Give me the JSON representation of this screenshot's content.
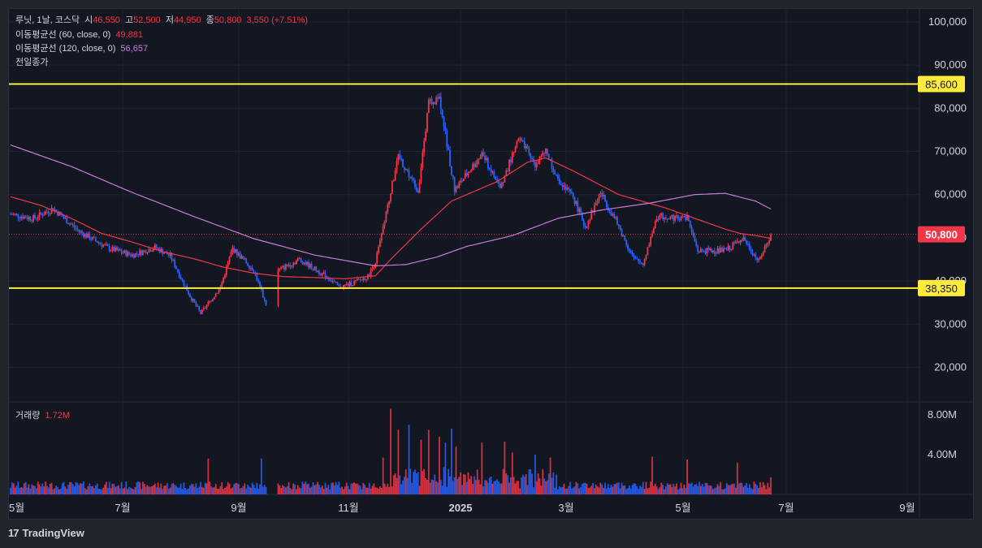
{
  "header": {
    "symbol": "루닛, 1날, 코스닥",
    "open_label": "시",
    "open": "46,550",
    "high_label": "고",
    "high": "52,500",
    "low_label": "저",
    "low": "44,950",
    "close_label": "종",
    "close": "50,800",
    "change": "3,550 (+7.51%)"
  },
  "indicators": {
    "ma60_label": "이동평균선 (60, close, 0)",
    "ma60_value": "49,881",
    "ma120_label": "이동평균선 (120, close, 0)",
    "ma120_value": "56,657",
    "prev_close_label": "전일종가"
  },
  "volume_pane": {
    "label": "거래량",
    "value": "1.72M"
  },
  "brand": {
    "name": "TradingView",
    "logo": "17"
  },
  "colors": {
    "up": "#f23645",
    "down": "#2962ff",
    "ma60": "#f23645",
    "ma120": "#c77dd8",
    "level": "#ffeb3b",
    "background": "#131722"
  },
  "chart_data": {
    "type": "candlestick",
    "price_axis": {
      "ticks": [
        20000,
        30000,
        40000,
        50000,
        60000,
        70000,
        80000,
        90000,
        100000
      ],
      "tick_labels": [
        "20,000",
        "30,000",
        "40,000",
        "50,000",
        "60,000",
        "70,000",
        "80,000",
        "90,000",
        "100,000"
      ],
      "range": [
        12000,
        103000
      ]
    },
    "volume_axis": {
      "tick_labels": [
        "4.00M",
        "8.00M"
      ],
      "ticks": [
        4000000,
        8000000
      ],
      "range": [
        0,
        9300000
      ]
    },
    "time_axis": {
      "labels": [
        "5월",
        "7월",
        "9월",
        "11월",
        "2025",
        "3월",
        "5월",
        "7월",
        "9월"
      ]
    },
    "levels": [
      {
        "price": 85600,
        "label": "85,600"
      },
      {
        "price": 38350,
        "label": "38,350"
      }
    ],
    "last_price": {
      "price": 50800,
      "label": "50,800"
    },
    "ma60_anchor_points": [
      [
        0,
        59500
      ],
      [
        20,
        57500
      ],
      [
        40,
        54500
      ],
      [
        60,
        51000
      ],
      [
        80,
        49000
      ],
      [
        100,
        46800
      ],
      [
        120,
        45200
      ],
      [
        140,
        43200
      ],
      [
        160,
        41800
      ],
      [
        180,
        41000
      ],
      [
        200,
        40800
      ],
      [
        220,
        40500
      ],
      [
        240,
        41200
      ],
      [
        250,
        45000
      ],
      [
        270,
        52000
      ],
      [
        290,
        58500
      ],
      [
        320,
        63000
      ],
      [
        340,
        67500
      ],
      [
        352,
        68500
      ],
      [
        370,
        65500
      ],
      [
        400,
        60000
      ],
      [
        430,
        57000
      ],
      [
        450,
        54500
      ],
      [
        470,
        52000
      ],
      [
        480,
        51000
      ],
      [
        490,
        50500
      ],
      [
        500,
        49881
      ]
    ],
    "ma120_anchor_points": [
      [
        0,
        71500
      ],
      [
        40,
        66500
      ],
      [
        80,
        60500
      ],
      [
        120,
        55000
      ],
      [
        160,
        49800
      ],
      [
        200,
        46000
      ],
      [
        240,
        43500
      ],
      [
        260,
        43800
      ],
      [
        280,
        45500
      ],
      [
        300,
        48000
      ],
      [
        330,
        50500
      ],
      [
        360,
        54500
      ],
      [
        390,
        56500
      ],
      [
        420,
        58000
      ],
      [
        450,
        60000
      ],
      [
        470,
        60300
      ],
      [
        490,
        58500
      ],
      [
        500,
        56657
      ]
    ],
    "ohlc_anchor_points": [
      [
        0,
        55500
      ],
      [
        15,
        54500
      ],
      [
        28,
        56800
      ],
      [
        45,
        51500
      ],
      [
        65,
        47500
      ],
      [
        80,
        46000
      ],
      [
        95,
        47800
      ],
      [
        105,
        45800
      ],
      [
        118,
        36500
      ],
      [
        125,
        32500
      ],
      [
        138,
        38500
      ],
      [
        146,
        47500
      ],
      [
        160,
        42500
      ],
      [
        168,
        34500
      ],
      [
        176,
        42500
      ],
      [
        190,
        45000
      ],
      [
        210,
        40500
      ],
      [
        216,
        38500
      ],
      [
        225,
        39500
      ],
      [
        235,
        41000
      ],
      [
        240,
        44500
      ],
      [
        245,
        52000
      ],
      [
        255,
        69000
      ],
      [
        268,
        61000
      ],
      [
        275,
        81000
      ],
      [
        282,
        83000
      ],
      [
        292,
        61000
      ],
      [
        310,
        69500
      ],
      [
        322,
        61500
      ],
      [
        334,
        73000
      ],
      [
        345,
        67000
      ],
      [
        352,
        70000
      ],
      [
        360,
        63000
      ],
      [
        370,
        59500
      ],
      [
        378,
        52500
      ],
      [
        388,
        60500
      ],
      [
        398,
        54000
      ],
      [
        404,
        49500
      ],
      [
        410,
        45000
      ],
      [
        416,
        44000
      ],
      [
        425,
        55000
      ],
      [
        445,
        54500
      ],
      [
        452,
        47000
      ],
      [
        470,
        47000
      ],
      [
        482,
        50000
      ],
      [
        492,
        44500
      ],
      [
        500,
        50800
      ]
    ],
    "volume_spikes": [
      [
        130,
        3600000
      ],
      [
        165,
        3600000
      ],
      [
        245,
        3700000
      ],
      [
        250,
        8600000
      ],
      [
        255,
        6500000
      ],
      [
        262,
        7000000
      ],
      [
        270,
        5500000
      ],
      [
        275,
        6500000
      ],
      [
        282,
        5800000
      ],
      [
        286,
        5200000
      ],
      [
        290,
        6600000
      ],
      [
        293,
        4800000
      ],
      [
        310,
        5200000
      ],
      [
        325,
        5300000
      ],
      [
        330,
        4200000
      ],
      [
        345,
        4000000
      ],
      [
        355,
        3700000
      ],
      [
        422,
        3800000
      ],
      [
        445,
        3500000
      ],
      [
        478,
        3200000
      ],
      [
        500,
        1720000
      ]
    ]
  }
}
